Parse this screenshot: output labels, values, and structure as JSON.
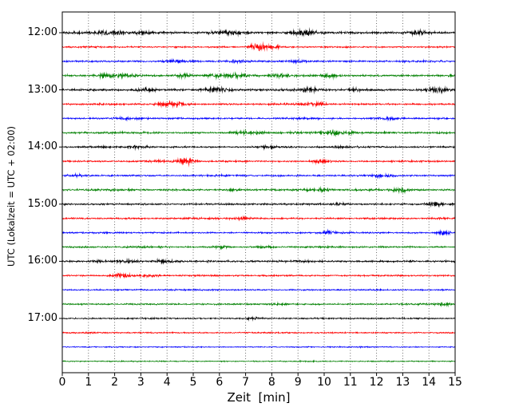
{
  "chart_data": {
    "type": "line",
    "subtype": "seismogram-dayplot",
    "title": "",
    "xlabel": "Zeit  [min]",
    "ylabel": "UTC (Lokalzeit = UTC + 02:00)",
    "xlim": [
      0,
      15
    ],
    "xticks": [
      0,
      1,
      2,
      3,
      4,
      5,
      6,
      7,
      8,
      9,
      10,
      11,
      12,
      13,
      14,
      15
    ],
    "y_hour_labels": [
      "12:00",
      "13:00",
      "14:00",
      "15:00",
      "16:00",
      "17:00"
    ],
    "minutes_per_trace": 15,
    "n_traces": 24,
    "grid": {
      "vertical_dotted_every_min": 1,
      "horizontal": false
    },
    "color_cycle": [
      "#000000",
      "#ff0000",
      "#0000ff",
      "#008000"
    ],
    "traces": [
      {
        "start": "12:00",
        "color": "#000000",
        "noise": 1.3,
        "events": [
          {
            "x": 1.9,
            "amp": 1.6,
            "w": 0.4
          },
          {
            "x": 3.1,
            "amp": 1.2,
            "w": 0.2
          },
          {
            "x": 6.3,
            "amp": 1.8,
            "w": 0.35
          },
          {
            "x": 9.2,
            "amp": 2.6,
            "w": 0.3
          },
          {
            "x": 13.6,
            "amp": 1.4,
            "w": 0.25
          }
        ]
      },
      {
        "start": "12:15",
        "color": "#ff0000",
        "noise": 0.9,
        "events": [
          {
            "x": 7.5,
            "amp": 3.8,
            "w": 0.18
          },
          {
            "x": 7.9,
            "amp": 1.5,
            "w": 0.3
          }
        ]
      },
      {
        "start": "12:30",
        "color": "#0000ff",
        "noise": 1.0,
        "events": [
          {
            "x": 4.4,
            "amp": 0.8,
            "w": 0.3
          },
          {
            "x": 6.6,
            "amp": 1.2,
            "w": 0.25
          },
          {
            "x": 9.1,
            "amp": 0.8,
            "w": 0.3
          }
        ]
      },
      {
        "start": "12:45",
        "color": "#008000",
        "noise": 1.2,
        "events": [
          {
            "x": 1.6,
            "amp": 1.5,
            "w": 0.2
          },
          {
            "x": 2.4,
            "amp": 1.2,
            "w": 0.2
          },
          {
            "x": 4.6,
            "amp": 1.1,
            "w": 0.2
          },
          {
            "x": 5.9,
            "amp": 1.2,
            "w": 0.25
          },
          {
            "x": 6.7,
            "amp": 1.6,
            "w": 0.3
          },
          {
            "x": 8.3,
            "amp": 1.2,
            "w": 0.2
          },
          {
            "x": 10.2,
            "amp": 2.0,
            "w": 0.18
          }
        ]
      },
      {
        "start": "13:00",
        "color": "#000000",
        "noise": 1.2,
        "events": [
          {
            "x": 3.2,
            "amp": 1.3,
            "w": 0.25
          },
          {
            "x": 5.9,
            "amp": 2.2,
            "w": 0.3
          },
          {
            "x": 9.4,
            "amp": 1.5,
            "w": 0.25
          },
          {
            "x": 11.2,
            "amp": 0.9,
            "w": 0.2
          },
          {
            "x": 14.3,
            "amp": 2.6,
            "w": 0.25
          }
        ]
      },
      {
        "start": "13:15",
        "color": "#ff0000",
        "noise": 1.0,
        "events": [
          {
            "x": 4.2,
            "amp": 2.6,
            "w": 0.35
          },
          {
            "x": 9.7,
            "amp": 1.8,
            "w": 0.25
          }
        ]
      },
      {
        "start": "13:30",
        "color": "#0000ff",
        "noise": 1.0,
        "events": [
          {
            "x": 2.5,
            "amp": 0.7,
            "w": 0.3
          },
          {
            "x": 12.4,
            "amp": 0.8,
            "w": 0.3
          }
        ]
      },
      {
        "start": "13:45",
        "color": "#008000",
        "noise": 1.1,
        "events": [
          {
            "x": 6.9,
            "amp": 1.4,
            "w": 0.25
          },
          {
            "x": 7.5,
            "amp": 1.1,
            "w": 0.2
          },
          {
            "x": 10.3,
            "amp": 1.7,
            "w": 0.25
          },
          {
            "x": 11.1,
            "amp": 0.9,
            "w": 0.2
          }
        ]
      },
      {
        "start": "14:00",
        "color": "#000000",
        "noise": 1.0,
        "events": [
          {
            "x": 2.9,
            "amp": 0.8,
            "w": 0.25
          },
          {
            "x": 7.8,
            "amp": 1.3,
            "w": 0.2
          },
          {
            "x": 10.6,
            "amp": 0.7,
            "w": 0.2
          }
        ]
      },
      {
        "start": "14:15",
        "color": "#ff0000",
        "noise": 0.9,
        "events": [
          {
            "x": 3.6,
            "amp": 0.8,
            "w": 0.2
          },
          {
            "x": 4.7,
            "amp": 3.4,
            "w": 0.22
          },
          {
            "x": 9.9,
            "amp": 1.6,
            "w": 0.25
          }
        ]
      },
      {
        "start": "14:30",
        "color": "#0000ff",
        "noise": 1.0,
        "events": [
          {
            "x": 0.6,
            "amp": 0.8,
            "w": 0.2
          },
          {
            "x": 12.2,
            "amp": 1.1,
            "w": 0.25
          }
        ]
      },
      {
        "start": "14:45",
        "color": "#008000",
        "noise": 1.1,
        "events": [
          {
            "x": 6.6,
            "amp": 0.9,
            "w": 0.2
          },
          {
            "x": 9.8,
            "amp": 1.1,
            "w": 0.25
          },
          {
            "x": 12.9,
            "amp": 1.7,
            "w": 0.2
          }
        ]
      },
      {
        "start": "15:00",
        "color": "#000000",
        "noise": 1.0,
        "events": [
          {
            "x": 10.6,
            "amp": 0.8,
            "w": 0.2
          },
          {
            "x": 14.2,
            "amp": 1.6,
            "w": 0.25
          }
        ]
      },
      {
        "start": "15:15",
        "color": "#ff0000",
        "noise": 1.0,
        "events": [
          {
            "x": 6.8,
            "amp": 0.9,
            "w": 0.25
          }
        ]
      },
      {
        "start": "15:30",
        "color": "#0000ff",
        "noise": 0.9,
        "events": [
          {
            "x": 10.2,
            "amp": 1.4,
            "w": 0.25
          },
          {
            "x": 14.6,
            "amp": 1.5,
            "w": 0.2
          }
        ]
      },
      {
        "start": "15:45",
        "color": "#008000",
        "noise": 1.0,
        "events": [
          {
            "x": 6.1,
            "amp": 0.9,
            "w": 0.2
          },
          {
            "x": 7.7,
            "amp": 0.8,
            "w": 0.2
          }
        ]
      },
      {
        "start": "16:00",
        "color": "#000000",
        "noise": 1.1,
        "events": [
          {
            "x": 1.3,
            "amp": 0.9,
            "w": 0.2
          },
          {
            "x": 2.5,
            "amp": 1.2,
            "w": 0.25
          },
          {
            "x": 3.9,
            "amp": 1.8,
            "w": 0.25
          }
        ]
      },
      {
        "start": "16:15",
        "color": "#ff0000",
        "noise": 0.9,
        "events": [
          {
            "x": 2.3,
            "amp": 1.6,
            "w": 0.25
          },
          {
            "x": 3.3,
            "amp": 1.3,
            "w": 0.2
          }
        ]
      },
      {
        "start": "16:30",
        "color": "#0000ff",
        "noise": 0.8,
        "events": []
      },
      {
        "start": "16:45",
        "color": "#008000",
        "noise": 0.9,
        "events": [
          {
            "x": 8.3,
            "amp": 1.1,
            "w": 0.2
          },
          {
            "x": 14.5,
            "amp": 1.3,
            "w": 0.2
          }
        ]
      },
      {
        "start": "17:00",
        "color": "#000000",
        "noise": 0.8,
        "events": [
          {
            "x": 7.3,
            "amp": 1.0,
            "w": 0.2
          }
        ]
      },
      {
        "start": "17:15",
        "color": "#ff0000",
        "noise": 0.75,
        "events": []
      },
      {
        "start": "17:30",
        "color": "#0000ff",
        "noise": 0.65,
        "events": []
      },
      {
        "start": "17:45",
        "color": "#008000",
        "noise": 0.65,
        "events": []
      }
    ]
  }
}
